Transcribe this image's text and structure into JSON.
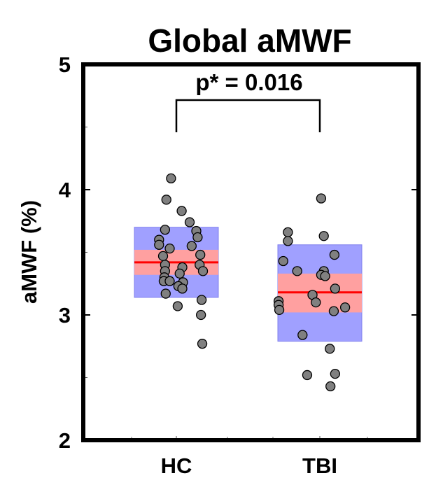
{
  "chart_data": {
    "type": "scatter",
    "title": "Global aMWF",
    "xlabel": "",
    "ylabel": "aMWF (%)",
    "ylim": [
      2,
      5
    ],
    "yticks": [
      2,
      3,
      4,
      5
    ],
    "categories": [
      "HC",
      "TBI"
    ],
    "grid": false,
    "annotation": "p* = 0.016",
    "colors": {
      "sd_box": "#a0a0ff",
      "ci_box": "#ffa0a0",
      "mean_line": "#ff0000",
      "point_fill": "#808080",
      "frame": "#000000"
    },
    "groups": [
      {
        "name": "HC",
        "mean": 3.42,
        "ci": [
          3.32,
          3.52
        ],
        "sd": [
          3.14,
          3.7
        ],
        "points": [
          {
            "jitter": -0.08,
            "y": 4.09
          },
          {
            "jitter": -0.15,
            "y": 3.92
          },
          {
            "jitter": 0.08,
            "y": 3.83
          },
          {
            "jitter": 0.2,
            "y": 3.74
          },
          {
            "jitter": -0.17,
            "y": 3.68
          },
          {
            "jitter": 0.3,
            "y": 3.67
          },
          {
            "jitter": 0.32,
            "y": 3.62
          },
          {
            "jitter": -0.26,
            "y": 3.6
          },
          {
            "jitter": -0.26,
            "y": 3.56
          },
          {
            "jitter": 0.23,
            "y": 3.55
          },
          {
            "jitter": -0.1,
            "y": 3.53
          },
          {
            "jitter": -0.2,
            "y": 3.47
          },
          {
            "jitter": 0.36,
            "y": 3.48
          },
          {
            "jitter": 0.35,
            "y": 3.4
          },
          {
            "jitter": -0.17,
            "y": 3.4
          },
          {
            "jitter": 0.09,
            "y": 3.38
          },
          {
            "jitter": -0.17,
            "y": 3.35
          },
          {
            "jitter": 0.4,
            "y": 3.35
          },
          {
            "jitter": 0.05,
            "y": 3.33
          },
          {
            "jitter": -0.18,
            "y": 3.3
          },
          {
            "jitter": -0.19,
            "y": 3.27
          },
          {
            "jitter": -0.1,
            "y": 3.27
          },
          {
            "jitter": 0.1,
            "y": 3.26
          },
          {
            "jitter": 0.03,
            "y": 3.23
          },
          {
            "jitter": 0.09,
            "y": 3.21
          },
          {
            "jitter": -0.16,
            "y": 3.17
          },
          {
            "jitter": 0.38,
            "y": 3.12
          },
          {
            "jitter": 0.02,
            "y": 3.07
          },
          {
            "jitter": 0.37,
            "y": 3.0
          },
          {
            "jitter": 0.39,
            "y": 2.77
          }
        ]
      },
      {
        "name": "TBI",
        "mean": 3.18,
        "ci": [
          3.02,
          3.33
        ],
        "sd": [
          2.79,
          3.56
        ],
        "points": [
          {
            "jitter": 0.02,
            "y": 3.93
          },
          {
            "jitter": -0.48,
            "y": 3.66
          },
          {
            "jitter": 0.06,
            "y": 3.63
          },
          {
            "jitter": -0.48,
            "y": 3.59
          },
          {
            "jitter": 0.22,
            "y": 3.48
          },
          {
            "jitter": -0.55,
            "y": 3.43
          },
          {
            "jitter": 0.06,
            "y": 3.35
          },
          {
            "jitter": -0.34,
            "y": 3.35
          },
          {
            "jitter": 0.02,
            "y": 3.32
          },
          {
            "jitter": 0.08,
            "y": 3.31
          },
          {
            "jitter": 0.23,
            "y": 3.21
          },
          {
            "jitter": -0.11,
            "y": 3.16
          },
          {
            "jitter": -0.62,
            "y": 3.11
          },
          {
            "jitter": -0.06,
            "y": 3.1
          },
          {
            "jitter": -0.62,
            "y": 3.08
          },
          {
            "jitter": 0.38,
            "y": 3.06
          },
          {
            "jitter": -0.61,
            "y": 3.04
          },
          {
            "jitter": 0.21,
            "y": 3.03
          },
          {
            "jitter": -0.26,
            "y": 2.84
          },
          {
            "jitter": 0.15,
            "y": 2.73
          },
          {
            "jitter": 0.23,
            "y": 2.53
          },
          {
            "jitter": -0.19,
            "y": 2.52
          },
          {
            "jitter": 0.16,
            "y": 2.43
          }
        ]
      }
    ]
  }
}
